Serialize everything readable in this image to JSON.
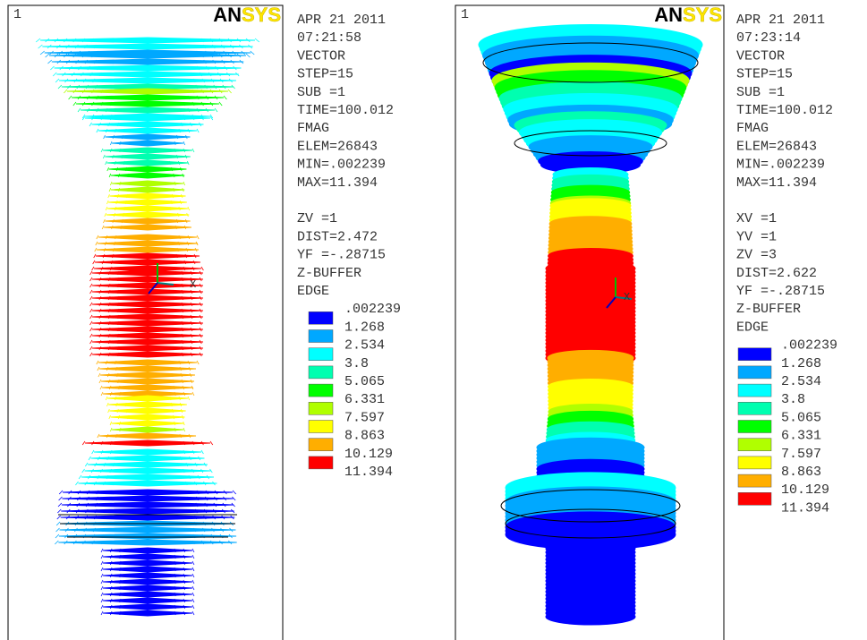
{
  "panels": [
    {
      "window": "1",
      "logo": [
        "AN",
        "SYS"
      ],
      "info": [
        "APR 21 2011",
        "07:21:58",
        "VECTOR",
        "STEP=15",
        "SUB =1",
        "TIME=100.012",
        "FMAG",
        "ELEM=26843",
        "MIN=.002239",
        "MAX=11.394"
      ],
      "view": [
        "ZV   =1",
        "DIST=2.472",
        "YF   =-.28715",
        "Z-BUFFER",
        "EDGE"
      ],
      "triad_label": "X",
      "legend": [
        ".002239",
        "1.268",
        "2.534",
        "3.8",
        "5.065",
        "6.331",
        "7.597",
        "8.863",
        "10.129",
        "11.394"
      ],
      "legend_colors": [
        "#0000ff",
        "#00a8ff",
        "#00ffff",
        "#00ffb0",
        "#00ff00",
        "#b0ff00",
        "#ffff00",
        "#ffae00",
        "#ff0000"
      ]
    },
    {
      "window": "1",
      "logo": [
        "AN",
        "SYS"
      ],
      "info": [
        "APR 21 2011",
        "07:23:14",
        "VECTOR",
        "STEP=15",
        "SUB =1",
        "TIME=100.012",
        "FMAG",
        "ELEM=26843",
        "MIN=.002239",
        "MAX=11.394"
      ],
      "view": [
        "XV   =1",
        "YV   =1",
        "ZV   =3",
        "DIST=2.622",
        "YF   =-.28715",
        "Z-BUFFER",
        "EDGE"
      ],
      "triad_label": "X",
      "legend": [
        ".002239",
        "1.268",
        "2.534",
        "3.8",
        "5.065",
        "6.331",
        "7.597",
        "8.863",
        "10.129",
        "11.394"
      ],
      "legend_colors": [
        "#0000ff",
        "#00a8ff",
        "#00ffff",
        "#00ffb0",
        "#00ff00",
        "#b0ff00",
        "#ffff00",
        "#ffae00",
        "#ff0000"
      ]
    }
  ]
}
